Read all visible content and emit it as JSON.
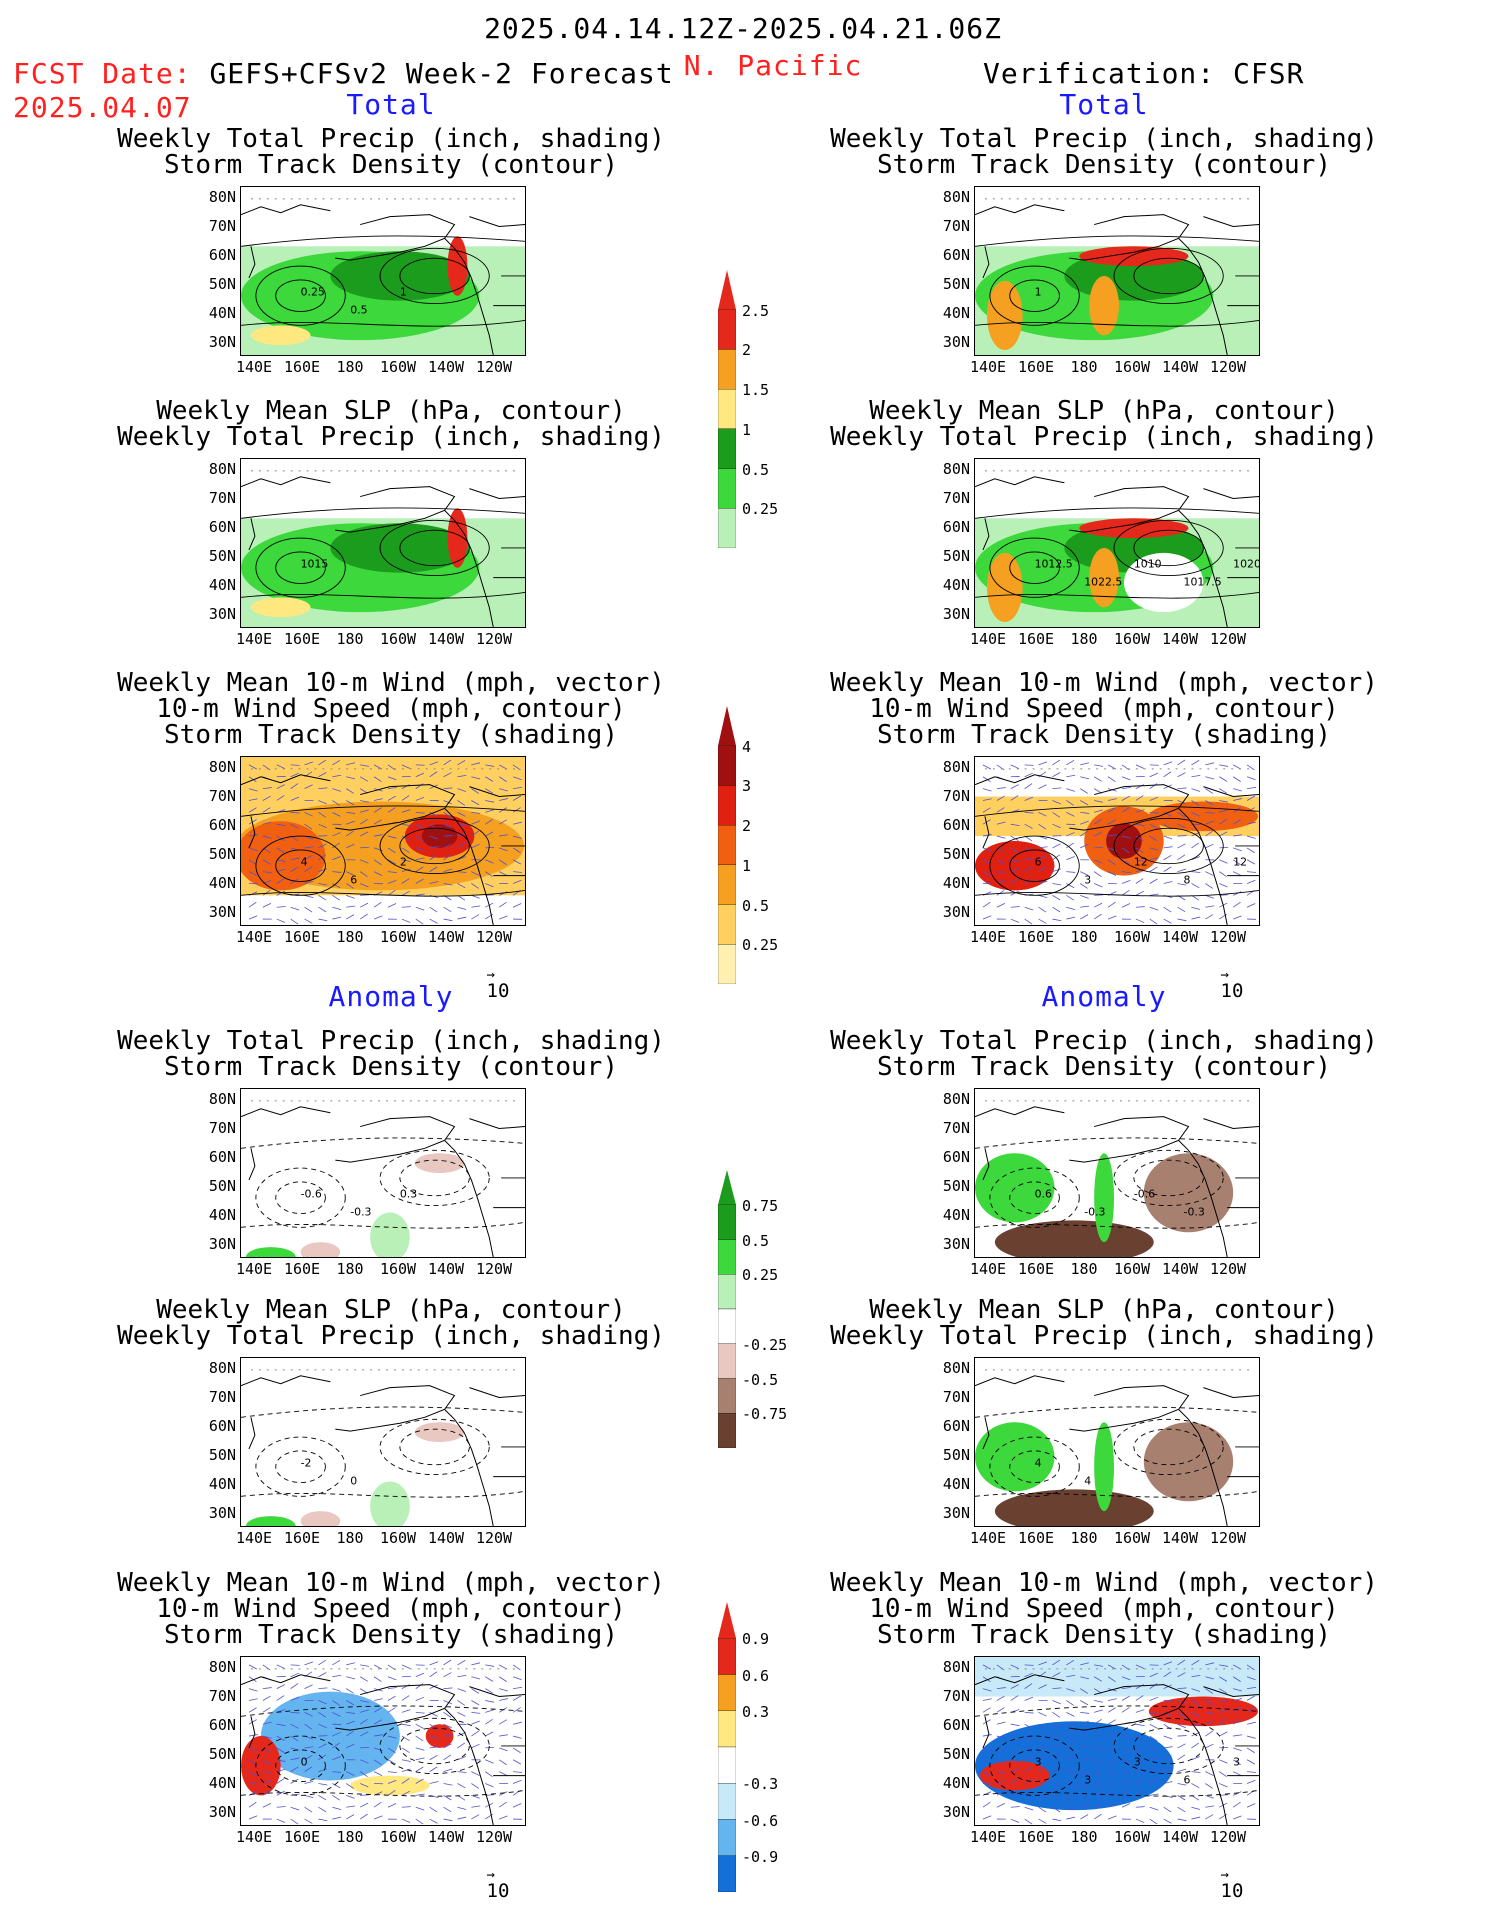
{
  "header": {
    "date_range": "2025.04.14.12Z-2025.04.21.06Z",
    "region": "N. Pacific",
    "fcst_label": "FCST Date:",
    "fcst_model": "GEFS+CFSv2 Week-2 Forecast",
    "fcst_date": "2025.04.07",
    "verification": "Verification: CFSR"
  },
  "sections": {
    "total": "Total",
    "anomaly": "Anomaly"
  },
  "titles": {
    "precip_storm": [
      "Weekly Total Precip (inch, shading)",
      "Storm Track Density (contour)"
    ],
    "slp_precip": [
      "Weekly Mean SLP (hPa, contour)",
      "Weekly Total Precip (inch, shading)"
    ],
    "wind_storm": [
      "Weekly Mean 10-m Wind (mph, vector)",
      "10-m Wind Speed (mph, contour)",
      "Storm Track Density (shading)"
    ]
  },
  "axes": {
    "lat": [
      "80N",
      "70N",
      "60N",
      "50N",
      "40N",
      "30N"
    ],
    "lon": [
      "140E",
      "160E",
      "180",
      "160W",
      "140W",
      "120W"
    ]
  },
  "vector_scale": "10",
  "colorbars": {
    "precip_total": {
      "labels": [
        "2.5",
        "2",
        "1.5",
        "1",
        "0.5",
        "0.25"
      ],
      "colors": [
        "#e5281c",
        "#f5a020",
        "#ffe880",
        "#1c9c1c",
        "#3cd83c",
        "#b8f0b8"
      ]
    },
    "storm_total": {
      "labels": [
        "4",
        "3",
        "2",
        "1",
        "0.5",
        "0.25"
      ],
      "colors": [
        "#a01010",
        "#e02010",
        "#f06010",
        "#f5a020",
        "#ffd060",
        "#fff0b0"
      ]
    },
    "precip_anom": {
      "labels": [
        "0.75",
        "0.5",
        "0.25",
        "-0.25",
        "-0.5",
        "-0.75"
      ],
      "colors": [
        "#1c9c1c",
        "#3cd83c",
        "#b8f0b8",
        "#ffffff",
        "#e8c8c0",
        "#a88070",
        "#6a4030"
      ]
    },
    "storm_anom": {
      "labels": [
        "0.9",
        "0.6",
        "0.3",
        "-0.3",
        "-0.6",
        "-0.9"
      ],
      "colors": [
        "#e5281c",
        "#f5a020",
        "#ffe880",
        "#ffffff",
        "#c8eaf8",
        "#64b4f0",
        "#1470d8"
      ]
    }
  },
  "contour_labels": {
    "fcst_precip_storm": [
      "0.25",
      "0.5",
      "1"
    ],
    "cfsr_precip_storm": [
      "1"
    ],
    "fcst_slp": [
      "1015"
    ],
    "cfsr_slp": [
      "1012.5",
      "1022.5",
      "1010",
      "1017.5",
      "1020"
    ],
    "fcst_wind": [
      "4",
      "6",
      "2"
    ],
    "cfsr_wind": [
      "6",
      "3",
      "12",
      "8",
      "12"
    ],
    "fcst_anom_precip": [
      "-0.6",
      "-0.3",
      "0.3"
    ],
    "cfsr_anom_precip": [
      "0.6",
      "-0.3",
      "-0.6",
      "-0.3"
    ],
    "fcst_anom_slp": [
      "-2",
      "0"
    ],
    "cfsr_anom_slp": [
      "4",
      "4"
    ],
    "fcst_anom_wind": [
      "0"
    ],
    "cfsr_anom_wind": [
      "3",
      "3",
      "3",
      "6",
      "3"
    ]
  }
}
